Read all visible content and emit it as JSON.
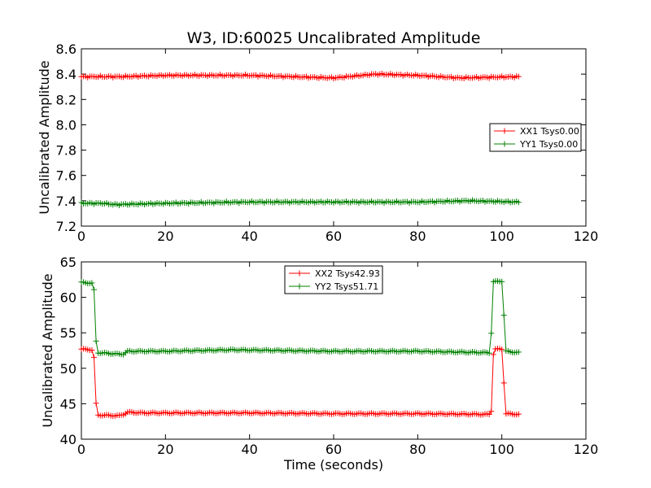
{
  "figure": {
    "title": "W3, ID:60025 Uncalibrated Amplitude"
  },
  "chart_data": [
    {
      "type": "line",
      "title": "W3, ID:60025 Uncalibrated Amplitude",
      "xlabel": "",
      "ylabel": "Uncalibrated Amplitude",
      "xlim": [
        0,
        120
      ],
      "ylim": [
        7.2,
        8.6
      ],
      "xticks": [
        0,
        20,
        40,
        60,
        80,
        100,
        120
      ],
      "yticks": [
        7.2,
        7.4,
        7.6,
        7.8,
        8.0,
        8.2,
        8.4,
        8.6
      ],
      "xtick_labels": [
        "0",
        "20",
        "40",
        "60",
        "80",
        "100",
        "120"
      ],
      "ytick_labels": [
        "7.2",
        "7.4",
        "7.6",
        "7.8",
        "8.0",
        "8.2",
        "8.4",
        "8.6"
      ],
      "legend_position": "center-right",
      "x_range": [
        0,
        104
      ],
      "series": [
        {
          "name": "XX1 Tsys0.00",
          "color": "#ff0000",
          "marker": "plus",
          "x_start": 0,
          "x_end": 104,
          "level_points": [
            [
              0,
              8.38
            ],
            [
              10,
              8.38
            ],
            [
              20,
              8.39
            ],
            [
              40,
              8.39
            ],
            [
              50,
              8.38
            ],
            [
              60,
              8.37
            ],
            [
              70,
              8.4
            ],
            [
              80,
              8.39
            ],
            [
              90,
              8.37
            ],
            [
              104,
              8.38
            ]
          ]
        },
        {
          "name": "YY1 Tsys0.00",
          "color": "#008000",
          "marker": "plus",
          "x_start": 0,
          "x_end": 104,
          "level_points": [
            [
              0,
              7.38
            ],
            [
              5,
              7.38
            ],
            [
              8,
              7.37
            ],
            [
              20,
              7.38
            ],
            [
              40,
              7.39
            ],
            [
              60,
              7.39
            ],
            [
              80,
              7.39
            ],
            [
              92,
              7.4
            ],
            [
              104,
              7.39
            ]
          ]
        }
      ]
    },
    {
      "type": "line",
      "title": "",
      "xlabel": "Time (seconds)",
      "ylabel": "Uncalibrated Amplitude",
      "xlim": [
        0,
        120
      ],
      "ylim": [
        40,
        65
      ],
      "xticks": [
        0,
        20,
        40,
        60,
        80,
        100,
        120
      ],
      "yticks": [
        40,
        45,
        50,
        55,
        60,
        65
      ],
      "xtick_labels": [
        "0",
        "20",
        "40",
        "60",
        "80",
        "100",
        "120"
      ],
      "ytick_labels": [
        "40",
        "45",
        "50",
        "55",
        "60",
        "65"
      ],
      "legend_position": "top-center",
      "series": [
        {
          "name": "XX2 Tsys42.93",
          "color": "#ff0000",
          "marker": "plus",
          "x_start": 0,
          "x_end": 104,
          "points": [
            [
              0,
              52.7
            ],
            [
              2.5,
              52.6
            ],
            [
              3,
              51.5
            ],
            [
              3.5,
              45.0
            ],
            [
              4,
              43.4
            ],
            [
              9,
              43.3
            ],
            [
              10,
              43.5
            ],
            [
              11,
              43.8
            ],
            [
              15,
              43.7
            ],
            [
              40,
              43.7
            ],
            [
              60,
              43.6
            ],
            [
              80,
              43.6
            ],
            [
              97,
              43.5
            ],
            [
              97.5,
              44.0
            ],
            [
              98,
              52.0
            ],
            [
              98.5,
              52.7
            ],
            [
              100,
              52.7
            ],
            [
              100.5,
              48.0
            ],
            [
              101,
              43.6
            ],
            [
              104,
              43.5
            ]
          ]
        },
        {
          "name": "YY2 Tsys51.71",
          "color": "#008000",
          "marker": "plus",
          "x_start": 0,
          "x_end": 104,
          "points": [
            [
              0,
              62.1
            ],
            [
              2.5,
              62.0
            ],
            [
              3,
              61.0
            ],
            [
              3.5,
              53.8
            ],
            [
              4,
              52.2
            ],
            [
              9,
              52.0
            ],
            [
              10,
              52.0
            ],
            [
              11,
              52.4
            ],
            [
              20,
              52.4
            ],
            [
              36,
              52.6
            ],
            [
              60,
              52.4
            ],
            [
              80,
              52.4
            ],
            [
              97,
              52.2
            ],
            [
              97.5,
              55.0
            ],
            [
              98,
              62.2
            ],
            [
              100,
              62.3
            ],
            [
              100.5,
              57.5
            ],
            [
              101,
              52.4
            ],
            [
              104,
              52.2
            ]
          ]
        }
      ]
    }
  ]
}
